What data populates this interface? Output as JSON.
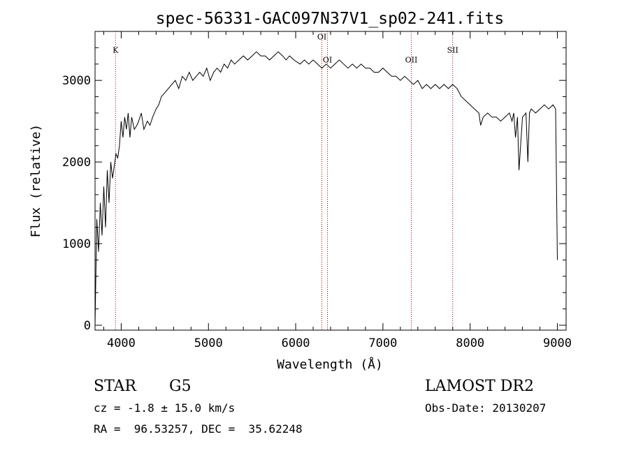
{
  "chart_data": {
    "type": "line",
    "title": "spec-56331-GAC097N37V1_sp02-241.fits",
    "xlabel": "Wavelength (Å)",
    "ylabel": "Flux (relative)",
    "xlim": [
      3700,
      9100
    ],
    "ylim": [
      -60,
      3600
    ],
    "xticks": [
      4000,
      5000,
      6000,
      7000,
      8000,
      9000
    ],
    "yticks": [
      0,
      1000,
      2000,
      3000
    ],
    "grid": false,
    "spectral_lines": [
      {
        "name": "K",
        "x": 3934,
        "label_y": 3340
      },
      {
        "name": "OI",
        "x": 6300,
        "label_y": 3500
      },
      {
        "name": "OI",
        "x": 6364,
        "label_y": 3220
      },
      {
        "name": "OII",
        "x": 7325,
        "label_y": 3220
      },
      {
        "name": "SII",
        "x": 7800,
        "label_y": 3340
      }
    ],
    "series": [
      {
        "color": "#000000",
        "x": [
          3700,
          3720,
          3740,
          3760,
          3780,
          3800,
          3820,
          3840,
          3860,
          3880,
          3900,
          3920,
          3940,
          3960,
          3980,
          4000,
          4020,
          4040,
          4060,
          4080,
          4100,
          4120,
          4150,
          4180,
          4200,
          4230,
          4260,
          4300,
          4330,
          4360,
          4400,
          4430,
          4460,
          4500,
          4540,
          4580,
          4620,
          4660,
          4700,
          4740,
          4780,
          4820,
          4860,
          4900,
          4940,
          4980,
          5020,
          5060,
          5100,
          5140,
          5180,
          5220,
          5260,
          5300,
          5350,
          5400,
          5450,
          5500,
          5550,
          5600,
          5650,
          5700,
          5750,
          5800,
          5850,
          5890,
          5930,
          5980,
          6050,
          6100,
          6150,
          6200,
          6250,
          6300,
          6350,
          6400,
          6450,
          6500,
          6550,
          6600,
          6650,
          6700,
          6750,
          6800,
          6850,
          6900,
          6950,
          7000,
          7050,
          7100,
          7150,
          7200,
          7250,
          7300,
          7350,
          7400,
          7450,
          7500,
          7550,
          7600,
          7650,
          7700,
          7750,
          7800,
          7850,
          7900,
          7950,
          8000,
          8050,
          8100,
          8120,
          8150,
          8200,
          8250,
          8300,
          8350,
          8400,
          8450,
          8480,
          8500,
          8520,
          8542,
          8560,
          8600,
          8640,
          8662,
          8680,
          8700,
          8750,
          8800,
          8850,
          8900,
          8950,
          8980,
          9000
        ],
        "y": [
          0,
          1300,
          900,
          1500,
          1100,
          1700,
          1200,
          1900,
          1500,
          2000,
          1800,
          1950,
          2100,
          2050,
          2200,
          2500,
          2300,
          2550,
          2400,
          2600,
          2300,
          2550,
          2400,
          2450,
          2500,
          2600,
          2400,
          2500,
          2450,
          2550,
          2650,
          2700,
          2800,
          2850,
          2900,
          2950,
          3000,
          2900,
          3050,
          3000,
          3100,
          3000,
          3050,
          3100,
          3050,
          3150,
          3000,
          3100,
          3150,
          3100,
          3200,
          3150,
          3250,
          3200,
          3250,
          3300,
          3250,
          3300,
          3350,
          3300,
          3300,
          3250,
          3300,
          3350,
          3300,
          3250,
          3300,
          3250,
          3200,
          3250,
          3200,
          3250,
          3200,
          3150,
          3200,
          3150,
          3200,
          3250,
          3200,
          3150,
          3200,
          3150,
          3200,
          3150,
          3150,
          3100,
          3100,
          3150,
          3100,
          3050,
          3050,
          3000,
          3050,
          3000,
          2950,
          3000,
          2900,
          2950,
          2900,
          2950,
          2900,
          2950,
          2900,
          2950,
          2900,
          2800,
          2750,
          2700,
          2650,
          2600,
          2450,
          2550,
          2600,
          2550,
          2550,
          2500,
          2550,
          2600,
          2500,
          2600,
          2300,
          2550,
          1900,
          2550,
          2600,
          2000,
          2600,
          2650,
          2600,
          2650,
          2700,
          2650,
          2700,
          2650,
          800
        ]
      }
    ]
  },
  "info": {
    "object_class": "STAR",
    "subclass": "G5",
    "survey": "LAMOST DR2",
    "redshift": "cz = -1.8 ± 15.0 km/s",
    "obs_date": "Obs-Date: 20130207",
    "coords": "RA =  96.53257, DEC =  35.62248"
  }
}
